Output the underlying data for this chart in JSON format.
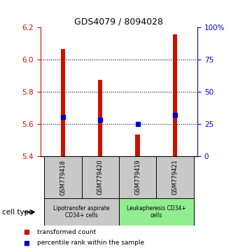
{
  "title": "GDS4079 / 8094028",
  "samples": [
    "GSM779418",
    "GSM779420",
    "GSM779419",
    "GSM779421"
  ],
  "bar_tops": [
    6.065,
    5.875,
    5.535,
    6.155
  ],
  "bar_bottom": 5.4,
  "percentile_values": [
    5.645,
    5.625,
    5.6,
    5.655
  ],
  "ylim": [
    5.4,
    6.2
  ],
  "yticks": [
    5.4,
    5.6,
    5.8,
    6.0,
    6.2
  ],
  "right_yticks": [
    0,
    25,
    50,
    75,
    100
  ],
  "right_ytick_labels": [
    "0",
    "25",
    "50",
    "75",
    "100%"
  ],
  "bar_color": "#cc1100",
  "percentile_color": "#0000cc",
  "group1_label": "Lipotransfer aspirate\nCD34+ cells",
  "group2_label": "Leukapheresis CD34+\ncells",
  "group1_color": "#c8c8c8",
  "group2_color": "#90ee90",
  "cell_type_label": "cell type",
  "legend_red_label": "transformed count",
  "legend_blue_label": "percentile rank within the sample",
  "bar_width": 0.12
}
